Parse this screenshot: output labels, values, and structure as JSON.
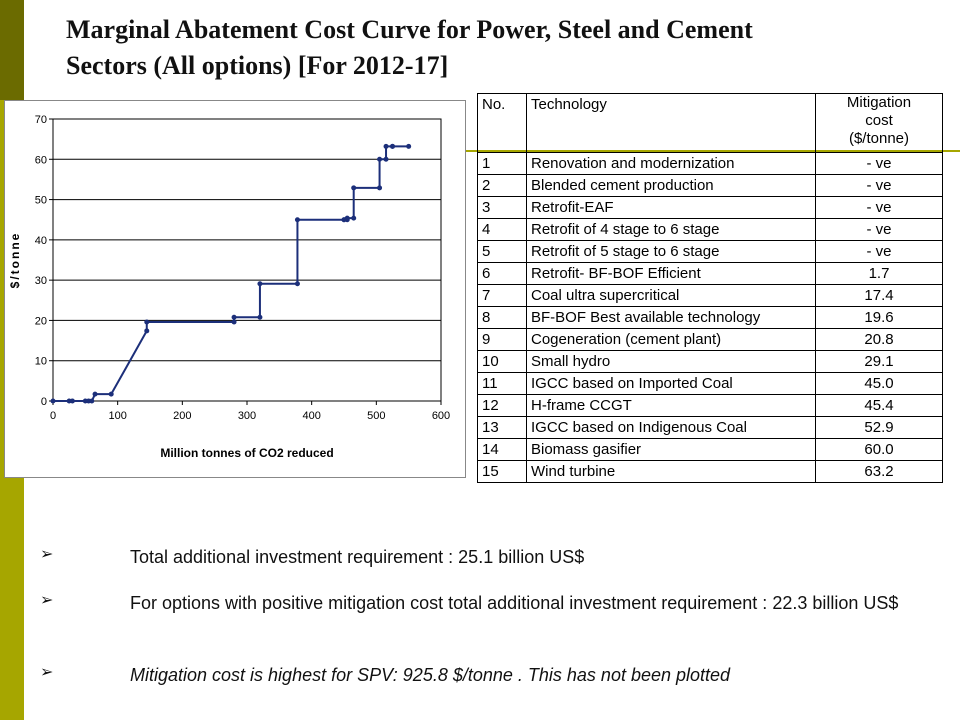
{
  "title_lines": [
    "Marginal Abatement Cost  Curve for Power,  Steel and Cement",
    "Sectors (All options) [For 2012-17]"
  ],
  "chart_data": {
    "type": "line",
    "title": "",
    "xlabel": "Million tonnes of CO2 reduced",
    "ylabel": "$/tonne",
    "xlim": [
      0,
      600
    ],
    "ylim": [
      0,
      70
    ],
    "x_ticks": [
      "0",
      "100",
      "200",
      "300",
      "400",
      "500",
      "600"
    ],
    "y_ticks": [
      "0",
      "10",
      "20",
      "30",
      "40",
      "50",
      "60",
      "70"
    ],
    "grid": true,
    "legend": "none",
    "color": "#1c2f7a",
    "series": [
      {
        "x": [
          0,
          25,
          30,
          50,
          55,
          60,
          65,
          90,
          145,
          145,
          280,
          280,
          320,
          320,
          378,
          378,
          450,
          450,
          455,
          455,
          465,
          465,
          505,
          505,
          515,
          515,
          525,
          525,
          550
        ],
        "y": [
          0,
          0,
          0,
          0,
          0,
          0,
          1.7,
          1.7,
          17.4,
          19.6,
          19.6,
          20.8,
          20.8,
          29.1,
          29.1,
          45.0,
          45.0,
          45.0,
          45.0,
          45.4,
          45.4,
          52.9,
          52.9,
          60.0,
          60.0,
          63.2,
          63.2,
          63.2,
          63.2
        ]
      }
    ]
  },
  "table": {
    "headers": {
      "no": "No.",
      "tech": "Technology",
      "cost": [
        "Mitigation",
        "cost",
        "($/tonne)"
      ]
    },
    "rows": [
      {
        "no": "1",
        "tech": "Renovation and modernization",
        "cost": "- ve"
      },
      {
        "no": "2",
        "tech": "Blended cement production",
        "cost": "- ve"
      },
      {
        "no": "3",
        "tech": "Retrofit-EAF",
        "cost": "- ve"
      },
      {
        "no": "4",
        "tech": "Retrofit of 4 stage to 6 stage",
        "cost": "- ve"
      },
      {
        "no": "5",
        "tech": "Retrofit of 5 stage to 6 stage",
        "cost": "- ve"
      },
      {
        "no": "6",
        "tech": "Retrofit- BF-BOF Efficient",
        "cost": "1.7"
      },
      {
        "no": "7",
        "tech": "Coal ultra supercritical",
        "cost": "17.4"
      },
      {
        "no": "8",
        "tech": "BF-BOF Best available technology",
        "cost": "19.6"
      },
      {
        "no": "9",
        "tech": "Cogeneration (cement plant)",
        "cost": "20.8"
      },
      {
        "no": "10",
        "tech": "Small hydro",
        "cost": "29.1"
      },
      {
        "no": "11",
        "tech": "IGCC based on Imported Coal",
        "cost": "45.0"
      },
      {
        "no": "12",
        "tech": "H-frame CCGT",
        "cost": "45.4"
      },
      {
        "no": "13",
        "tech": "IGCC based on Indigenous Coal",
        "cost": "52.9"
      },
      {
        "no": "14",
        "tech": "Biomass gasifier",
        "cost": "60.0"
      },
      {
        "no": "15",
        "tech": "Wind turbine",
        "cost": "63.2"
      }
    ]
  },
  "bullets": [
    {
      "text": "Total additional investment requirement : 25.1 billion US$",
      "italic": false
    },
    {
      "text": "For options with positive mitigation cost total additional investment requirement : 22.3 billion US$",
      "italic": false
    },
    {
      "text": "Mitigation cost is highest for SPV: 925.8 $/tonne .  This has not been plotted",
      "italic": true
    }
  ],
  "bullet_symbol": "➢",
  "colors": {
    "accent_dark": "#6b6b00",
    "accent_light": "#a6a600",
    "series": "#1c2f7a"
  }
}
